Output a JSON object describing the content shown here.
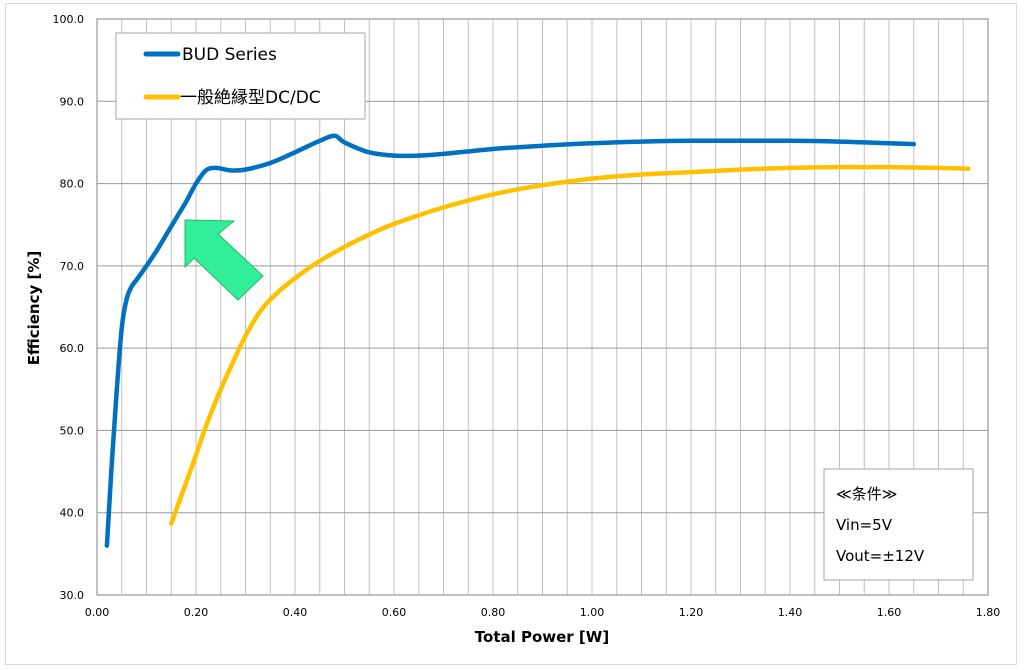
{
  "chart_data": {
    "type": "line",
    "xlabel": "Total Power [W]",
    "ylabel": "Efficiency [%]",
    "xlim": [
      0.0,
      1.8
    ],
    "ylim": [
      30.0,
      100.0
    ],
    "x_ticks": [
      "0.00",
      "0.20",
      "0.40",
      "0.60",
      "0.80",
      "1.00",
      "1.20",
      "1.40",
      "1.60",
      "1.80"
    ],
    "y_ticks": [
      "30.0",
      "40.0",
      "50.0",
      "60.0",
      "70.0",
      "80.0",
      "90.0",
      "100.0"
    ],
    "x_tick_values": [
      0,
      0.2,
      0.4,
      0.6,
      0.8,
      1.0,
      1.2,
      1.4,
      1.6,
      1.8
    ],
    "y_tick_values": [
      30,
      40,
      50,
      60,
      70,
      80,
      90,
      100
    ],
    "x_minor_step": 0.05,
    "grid": true,
    "legend_position": "top-left",
    "series": [
      {
        "name": "BUD Series",
        "color": "#0070c0",
        "x": [
          0.02,
          0.03,
          0.04,
          0.05,
          0.06,
          0.07,
          0.08,
          0.1,
          0.12,
          0.14,
          0.16,
          0.18,
          0.2,
          0.22,
          0.24,
          0.27,
          0.3,
          0.35,
          0.4,
          0.45,
          0.48,
          0.5,
          0.55,
          0.6,
          0.65,
          0.7,
          0.8,
          0.9,
          1.0,
          1.1,
          1.2,
          1.3,
          1.4,
          1.5,
          1.6,
          1.65
        ],
        "y": [
          36.0,
          46.0,
          55.0,
          62.5,
          66.0,
          67.5,
          68.3,
          70.0,
          71.8,
          73.8,
          75.8,
          77.8,
          80.0,
          81.6,
          81.9,
          81.6,
          81.7,
          82.5,
          83.8,
          85.2,
          85.8,
          85.0,
          83.8,
          83.4,
          83.4,
          83.6,
          84.2,
          84.6,
          84.9,
          85.1,
          85.2,
          85.2,
          85.2,
          85.1,
          84.9,
          84.8
        ]
      },
      {
        "name": "一般絶縁型DC/DC",
        "color": "#ffc000",
        "x": [
          0.15,
          0.17,
          0.2,
          0.22,
          0.25,
          0.28,
          0.3,
          0.33,
          0.36,
          0.4,
          0.45,
          0.5,
          0.55,
          0.6,
          0.7,
          0.8,
          0.9,
          1.0,
          1.1,
          1.2,
          1.3,
          1.4,
          1.5,
          1.55,
          1.6,
          1.7,
          1.76
        ],
        "y": [
          38.7,
          42.0,
          47.0,
          50.5,
          55.0,
          59.0,
          61.5,
          64.5,
          66.5,
          68.5,
          70.6,
          72.3,
          73.8,
          75.1,
          77.1,
          78.7,
          79.8,
          80.6,
          81.1,
          81.4,
          81.7,
          81.9,
          82.0,
          82.0,
          82.0,
          81.9,
          81.8
        ]
      }
    ],
    "annotation_box": {
      "title": "≪条件≫",
      "lines": [
        "Vin=5V",
        "Vout=±12V"
      ]
    },
    "arrow_color": "#33ee99"
  }
}
